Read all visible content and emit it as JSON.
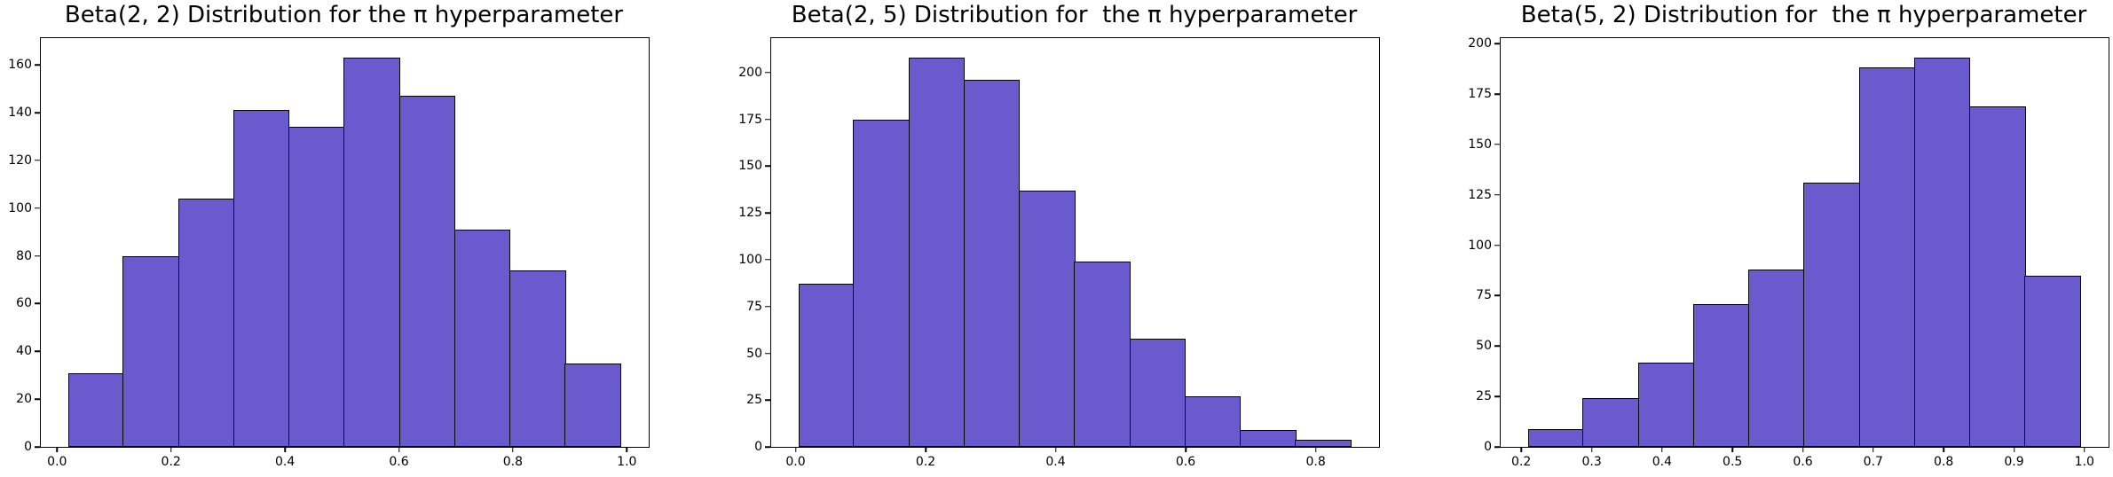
{
  "figure": {
    "background": "#ffffff",
    "kind": "matplotlib-histogram-row",
    "n_subplots": 3
  },
  "colors": {
    "bar_fill": "#6A5ACD",
    "bar_edge": "#000000",
    "spine": "#000000",
    "text": "#000000"
  },
  "chart_data": [
    {
      "type": "bar",
      "subtype": "histogram",
      "title": "Beta(2, 2) Distribution for the π hyperparameter",
      "bin_edges": [
        0.02,
        0.117,
        0.214,
        0.311,
        0.408,
        0.505,
        0.602,
        0.699,
        0.796,
        0.893,
        0.99
      ],
      "values": [
        31,
        80,
        104,
        141,
        134,
        163,
        147,
        91,
        74,
        35
      ],
      "xlim": [
        -0.0285,
        1.0385
      ],
      "ylim": [
        0,
        171.2
      ],
      "xtick_values": [
        0.0,
        0.2,
        0.4,
        0.6,
        0.8,
        1.0
      ],
      "xtick_labels": [
        "0.0",
        "0.2",
        "0.4",
        "0.6",
        "0.8",
        "1.0"
      ],
      "ytick_values": [
        0,
        20,
        40,
        60,
        80,
        100,
        120,
        140,
        160
      ],
      "ytick_labels": [
        "0",
        "20",
        "40",
        "60",
        "80",
        "100",
        "120",
        "140",
        "160"
      ],
      "grid": false,
      "legend": null,
      "xlabel": "",
      "ylabel": ""
    },
    {
      "type": "bar",
      "subtype": "histogram",
      "title": "Beta(2, 5) Distribution for  the π hyperparameter",
      "bin_edges": [
        0.005,
        0.09,
        0.175,
        0.26,
        0.345,
        0.43,
        0.515,
        0.6,
        0.685,
        0.77,
        0.855
      ],
      "values": [
        87,
        175,
        208,
        196,
        137,
        99,
        58,
        27,
        9,
        4
      ],
      "xlim": [
        -0.0375,
        0.8975
      ],
      "ylim": [
        0,
        218.4
      ],
      "xtick_values": [
        0.0,
        0.2,
        0.4,
        0.6,
        0.8
      ],
      "xtick_labels": [
        "0.0",
        "0.2",
        "0.4",
        "0.6",
        "0.8"
      ],
      "ytick_values": [
        0,
        25,
        50,
        75,
        100,
        125,
        150,
        175,
        200
      ],
      "ytick_labels": [
        "0",
        "25",
        "50",
        "75",
        "100",
        "125",
        "150",
        "175",
        "200"
      ],
      "grid": false,
      "legend": null,
      "xlabel": "",
      "ylabel": ""
    },
    {
      "type": "bar",
      "subtype": "histogram",
      "title": "Beta(5, 2) Distribution for  the π hyperparameter",
      "bin_edges": [
        0.21,
        0.2885,
        0.367,
        0.4455,
        0.524,
        0.6025,
        0.681,
        0.7595,
        0.838,
        0.9165,
        0.995
      ],
      "values": [
        9,
        24,
        42,
        71,
        88,
        131,
        188,
        193,
        169,
        85
      ],
      "xlim": [
        0.1707,
        1.0343
      ],
      "ylim": [
        0,
        202.7
      ],
      "xtick_values": [
        0.2,
        0.3,
        0.4,
        0.5,
        0.6,
        0.7,
        0.8,
        0.9,
        1.0
      ],
      "xtick_labels": [
        "0.2",
        "0.3",
        "0.4",
        "0.5",
        "0.6",
        "0.7",
        "0.8",
        "0.9",
        "1.0"
      ],
      "ytick_values": [
        0,
        25,
        50,
        75,
        100,
        125,
        150,
        175,
        200
      ],
      "ytick_labels": [
        "0",
        "25",
        "50",
        "75",
        "100",
        "125",
        "150",
        "175",
        "200"
      ],
      "grid": false,
      "legend": null,
      "xlabel": "",
      "ylabel": ""
    }
  ]
}
